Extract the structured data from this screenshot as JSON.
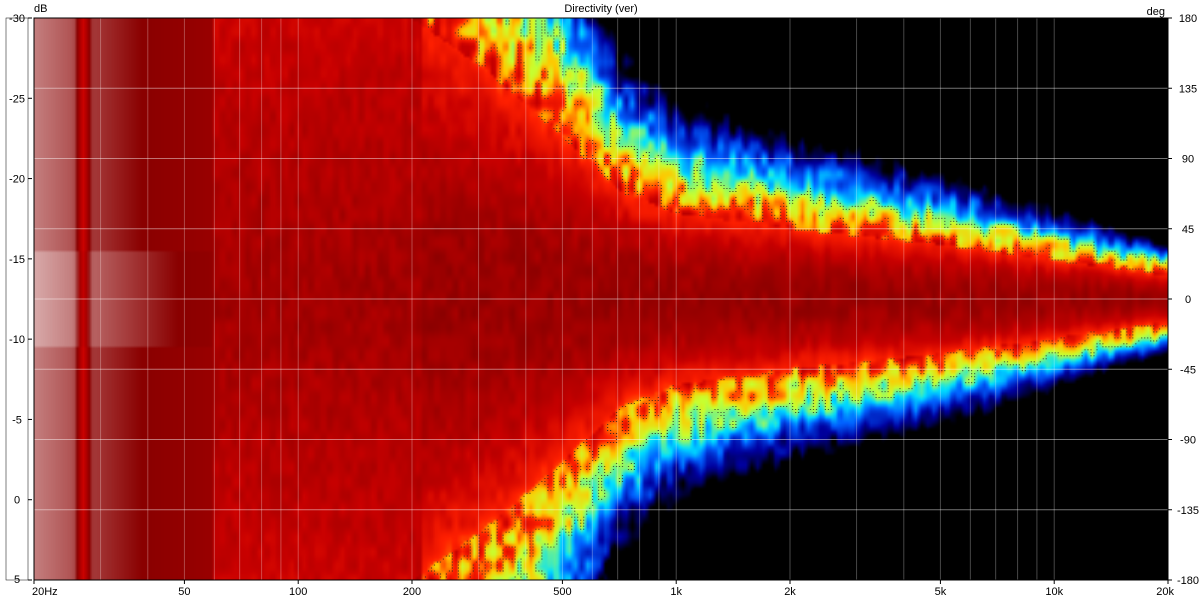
{
  "chart_data": {
    "type": "heatmap",
    "title": "Directivity (ver)",
    "colorbar_unit": "dB",
    "yaxis_unit": "deg",
    "x_scale": "log",
    "xlim_hz": [
      20,
      20000
    ],
    "ylim_deg": [
      -180,
      180
    ],
    "clim_db": [
      -30,
      5
    ],
    "x_ticks": [
      {
        "value": 20,
        "label": "20Hz"
      },
      {
        "value": 50,
        "label": "50"
      },
      {
        "value": 100,
        "label": "100"
      },
      {
        "value": 200,
        "label": "200"
      },
      {
        "value": 500,
        "label": "500"
      },
      {
        "value": 1000,
        "label": "1k"
      },
      {
        "value": 2000,
        "label": "2k"
      },
      {
        "value": 5000,
        "label": "5k"
      },
      {
        "value": 10000,
        "label": "10k"
      },
      {
        "value": 20000,
        "label": "20k"
      }
    ],
    "y_ticks": [
      180,
      135,
      90,
      45,
      0,
      -45,
      -90,
      -135,
      -180
    ],
    "colorbar_ticks": [
      5,
      0,
      -5,
      -10,
      -15,
      -20,
      -25,
      -30
    ],
    "colormap": [
      {
        "db": 5,
        "color": "#ffffff"
      },
      {
        "db": 2,
        "color": "#8a0000"
      },
      {
        "db": -2,
        "color": "#c80000"
      },
      {
        "db": -5,
        "color": "#ff2000"
      },
      {
        "db": -8,
        "color": "#ffc800"
      },
      {
        "db": -11,
        "color": "#c8ff30"
      },
      {
        "db": -15,
        "color": "#00e0ff"
      },
      {
        "db": -19,
        "color": "#0060ff"
      },
      {
        "db": -24,
        "color": "#0000a0"
      },
      {
        "db": -30,
        "color": "#000000"
      }
    ],
    "beamwidth_minus6db_deg": [
      {
        "hz": 20,
        "deg": 180
      },
      {
        "hz": 200,
        "deg": 180
      },
      {
        "hz": 300,
        "deg": 150
      },
      {
        "hz": 500,
        "deg": 105
      },
      {
        "hz": 700,
        "deg": 70
      },
      {
        "hz": 1000,
        "deg": 55
      },
      {
        "hz": 2000,
        "deg": 45
      },
      {
        "hz": 5000,
        "deg": 35
      },
      {
        "hz": 10000,
        "deg": 25
      },
      {
        "hz": 20000,
        "deg": 15
      }
    ],
    "grid": true
  }
}
